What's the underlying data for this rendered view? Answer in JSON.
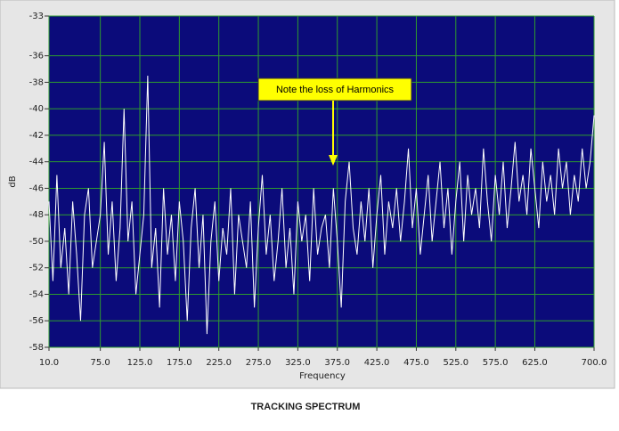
{
  "chart_data": {
    "type": "line",
    "x_label": "Frequency",
    "y_label": "dB",
    "caption": "TRACKING SPECTRUM",
    "annotation": "Note the loss of Harmonics",
    "xlim": [
      10,
      700
    ],
    "ylim": [
      -58,
      -33
    ],
    "xticks": [
      {
        "value": 10,
        "label": "10.0"
      },
      {
        "value": 75,
        "label": "75.0"
      },
      {
        "value": 125,
        "label": "125.0"
      },
      {
        "value": 175,
        "label": "175.0"
      },
      {
        "value": 225,
        "label": "225.0"
      },
      {
        "value": 275,
        "label": "275.0"
      },
      {
        "value": 325,
        "label": "325.0"
      },
      {
        "value": 375,
        "label": "375.0"
      },
      {
        "value": 425,
        "label": "425.0"
      },
      {
        "value": 475,
        "label": "475.0"
      },
      {
        "value": 525,
        "label": "525.0"
      },
      {
        "value": 575,
        "label": "575.0"
      },
      {
        "value": 625,
        "label": "625.0"
      },
      {
        "value": 700,
        "label": "700.0"
      }
    ],
    "yticks": [
      -33,
      -36,
      -38,
      -40,
      -42,
      -44,
      -46,
      -48,
      -50,
      -52,
      -54,
      -56,
      -58
    ],
    "grid": true,
    "series": [
      {
        "color": "#ffffff",
        "x": [
          10,
          15,
          20,
          25,
          30,
          35,
          40,
          45,
          50,
          55,
          60,
          65,
          70,
          75,
          80,
          85,
          90,
          95,
          100,
          105,
          110,
          115,
          120,
          125,
          130,
          135,
          140,
          145,
          150,
          155,
          160,
          165,
          170,
          175,
          180,
          185,
          190,
          195,
          200,
          205,
          210,
          215,
          220,
          225,
          230,
          235,
          240,
          245,
          250,
          255,
          260,
          265,
          270,
          275,
          280,
          285,
          290,
          295,
          300,
          305,
          310,
          315,
          320,
          325,
          330,
          335,
          340,
          345,
          350,
          355,
          360,
          365,
          370,
          375,
          380,
          385,
          390,
          395,
          400,
          405,
          410,
          415,
          420,
          425,
          430,
          435,
          440,
          445,
          450,
          455,
          460,
          465,
          470,
          475,
          480,
          485,
          490,
          495,
          500,
          505,
          510,
          515,
          520,
          525,
          530,
          535,
          540,
          545,
          550,
          555,
          560,
          565,
          570,
          575,
          580,
          585,
          590,
          595,
          600,
          605,
          610,
          615,
          620,
          625,
          630,
          635,
          640,
          645,
          650,
          655,
          660,
          665,
          670,
          675,
          680,
          685,
          690,
          695,
          700
        ],
        "values": [
          -47,
          -53,
          -45,
          -52,
          -49,
          -54,
          -47,
          -51,
          -56,
          -48,
          -46,
          -52,
          -50,
          -48,
          -42.5,
          -51,
          -47,
          -53,
          -49,
          -40,
          -50,
          -47,
          -54,
          -51,
          -48,
          -37.5,
          -52,
          -49,
          -55,
          -46,
          -51,
          -48,
          -53,
          -47,
          -50,
          -56,
          -49,
          -46,
          -52,
          -48,
          -57,
          -50,
          -47,
          -53,
          -49,
          -51,
          -46,
          -54,
          -48,
          -50,
          -52,
          -47,
          -55,
          -49,
          -45,
          -51,
          -48,
          -53,
          -50,
          -46,
          -52,
          -49,
          -54,
          -47,
          -50,
          -48,
          -53,
          -46,
          -51,
          -49,
          -48,
          -52,
          -46,
          -50,
          -55,
          -47,
          -44,
          -49,
          -51,
          -47,
          -50,
          -46,
          -52,
          -48,
          -45,
          -51,
          -47,
          -49,
          -46,
          -50,
          -47,
          -43,
          -49,
          -46,
          -51,
          -48,
          -45,
          -50,
          -47,
          -44,
          -49,
          -46,
          -51,
          -47,
          -44,
          -50,
          -45,
          -48,
          -46,
          -49,
          -43,
          -47,
          -50,
          -45,
          -48,
          -44,
          -49,
          -46,
          -42.5,
          -47,
          -45,
          -48,
          -43,
          -46,
          -49,
          -44,
          -47,
          -45,
          -48,
          -43,
          -46,
          -44,
          -48,
          -45,
          -47,
          -43,
          -46,
          -44,
          -40.5
        ]
      }
    ]
  }
}
